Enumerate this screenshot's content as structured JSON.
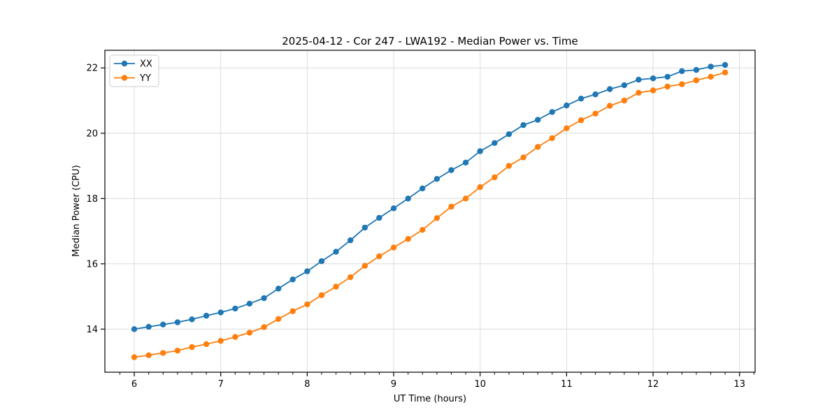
{
  "figure": {
    "background": "#ffffff"
  },
  "chart_data": {
    "type": "line",
    "title": "2025-04-12 - Cor 247 - LWA192 - Median Power vs. Time",
    "xlabel": "UT Time (hours)",
    "ylabel": "Median Power (CPU)",
    "xlim": [
      5.66,
      13.18
    ],
    "ylim": [
      12.68,
      22.54
    ],
    "x_ticks": [
      6,
      7,
      8,
      9,
      10,
      11,
      12,
      13
    ],
    "y_ticks": [
      14,
      16,
      18,
      20,
      22
    ],
    "x_minor_step": 0.1666667,
    "grid": true,
    "legend_position": "upper-left",
    "marker": "circle",
    "colors": {
      "grid": "#dcdcdc",
      "axis": "#000000",
      "text": "#000000",
      "legend_border": "#cccccc",
      "legend_background": "#ffffff"
    },
    "x": [
      6.0,
      6.167,
      6.333,
      6.5,
      6.667,
      6.833,
      7.0,
      7.167,
      7.333,
      7.5,
      7.667,
      7.833,
      8.0,
      8.167,
      8.333,
      8.5,
      8.667,
      8.833,
      9.0,
      9.167,
      9.333,
      9.5,
      9.667,
      9.833,
      10.0,
      10.167,
      10.333,
      10.5,
      10.667,
      10.833,
      11.0,
      11.167,
      11.333,
      11.5,
      11.667,
      11.833,
      12.0,
      12.167,
      12.333,
      12.5,
      12.667,
      12.833
    ],
    "series": [
      {
        "name": "XX",
        "color": "#1f77b4",
        "values": [
          14.0,
          14.07,
          14.14,
          14.21,
          14.3,
          14.41,
          14.51,
          14.63,
          14.78,
          14.95,
          15.24,
          15.52,
          15.77,
          16.08,
          16.37,
          16.72,
          17.11,
          17.41,
          17.7,
          18.0,
          18.31,
          18.6,
          18.87,
          19.1,
          19.45,
          19.7,
          19.97,
          20.25,
          20.41,
          20.65,
          20.85,
          21.06,
          21.19,
          21.35,
          21.47,
          21.64,
          21.68,
          21.73,
          21.9,
          21.94,
          22.04,
          22.09
        ]
      },
      {
        "name": "YY",
        "color": "#ff7f0e",
        "values": [
          13.14,
          13.2,
          13.27,
          13.34,
          13.45,
          13.54,
          13.64,
          13.76,
          13.89,
          14.06,
          14.31,
          14.55,
          14.76,
          15.04,
          15.3,
          15.59,
          15.94,
          16.23,
          16.5,
          16.76,
          17.04,
          17.4,
          17.75,
          18.0,
          18.35,
          18.65,
          19.0,
          19.26,
          19.58,
          19.85,
          20.15,
          20.4,
          20.6,
          20.84,
          21.0,
          21.24,
          21.31,
          21.43,
          21.5,
          21.62,
          21.73,
          21.86
        ]
      }
    ]
  }
}
